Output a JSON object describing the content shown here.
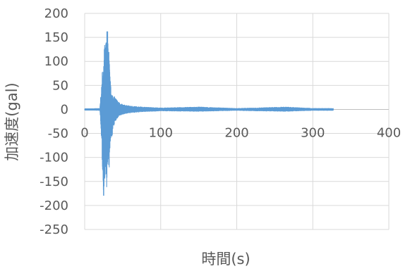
{
  "chart_data": {
    "type": "line",
    "title": "",
    "xlabel": "時間(s)",
    "ylabel": "加速度(gal)",
    "xlim": [
      0,
      400
    ],
    "ylim": [
      -250,
      200
    ],
    "xticks": [
      0,
      100,
      200,
      300,
      400
    ],
    "xtick_labels": [
      "0",
      "100",
      "200",
      "300",
      "400"
    ],
    "yticks": [
      200,
      150,
      100,
      50,
      0,
      -50,
      -100,
      -150,
      -200,
      -250
    ],
    "ytick_labels": [
      "200",
      "150",
      "100",
      "50",
      "0",
      "-50",
      "-100",
      "-150",
      "-200",
      "-250"
    ],
    "grid": true,
    "legend": "none",
    "series_color": "#5B9BD5",
    "grid_color": "#D9D9D9",
    "text_color": "#595959",
    "envelope": [
      {
        "t": 0,
        "min": -1,
        "max": 1
      },
      {
        "t": 20,
        "min": -2,
        "max": 2
      },
      {
        "t": 21,
        "min": -25,
        "max": 30
      },
      {
        "t": 22,
        "min": -70,
        "max": 40
      },
      {
        "t": 23,
        "min": -110,
        "max": 85
      },
      {
        "t": 24,
        "min": -165,
        "max": 70
      },
      {
        "t": 25,
        "min": -185,
        "max": 90
      },
      {
        "t": 26,
        "min": -150,
        "max": 140
      },
      {
        "t": 27,
        "min": -170,
        "max": 135
      },
      {
        "t": 28,
        "min": -120,
        "max": 145
      },
      {
        "t": 29,
        "min": -175,
        "max": 165
      },
      {
        "t": 30,
        "min": -130,
        "max": 170
      },
      {
        "t": 31,
        "min": -100,
        "max": 150
      },
      {
        "t": 32,
        "min": -165,
        "max": 120
      },
      {
        "t": 33,
        "min": -90,
        "max": 80
      },
      {
        "t": 34,
        "min": -60,
        "max": 55
      },
      {
        "t": 35,
        "min": -70,
        "max": 35
      },
      {
        "t": 37,
        "min": -45,
        "max": 30
      },
      {
        "t": 40,
        "min": -25,
        "max": 25
      },
      {
        "t": 45,
        "min": -15,
        "max": 15
      },
      {
        "t": 50,
        "min": -10,
        "max": 10
      },
      {
        "t": 60,
        "min": -7,
        "max": 7
      },
      {
        "t": 75,
        "min": -5,
        "max": 5
      },
      {
        "t": 100,
        "min": -3,
        "max": 3
      },
      {
        "t": 150,
        "min": -4,
        "max": 5
      },
      {
        "t": 200,
        "min": -2,
        "max": 2
      },
      {
        "t": 225,
        "min": -3,
        "max": 3
      },
      {
        "t": 265,
        "min": -4,
        "max": 5
      },
      {
        "t": 300,
        "min": -2,
        "max": 2
      },
      {
        "t": 327,
        "min": -2,
        "max": 2
      }
    ]
  }
}
